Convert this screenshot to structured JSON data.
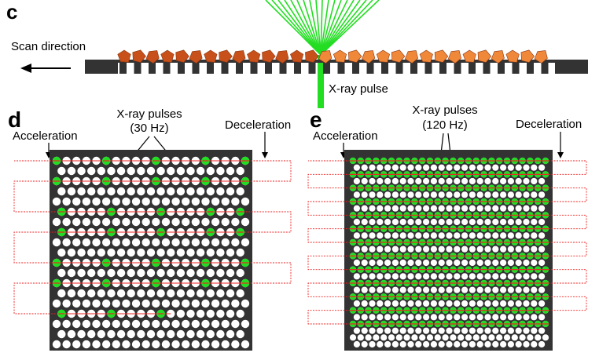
{
  "panel_c": {
    "letter": "c",
    "scan_direction_label": "Scan direction",
    "xray_pulse_label": "X-ray pulse"
  },
  "panel_d": {
    "letter": "d",
    "pulses_line1": "X-ray pulses",
    "pulses_line2": "(30 Hz)",
    "acceleration_label": "Acceleration",
    "deceleration_label": "Deceleration"
  },
  "panel_e": {
    "letter": "e",
    "pulses_line1": "X-ray pulses",
    "pulses_line2": "(120 Hz)",
    "acceleration_label": "Acceleration",
    "deceleration_label": "Deceleration"
  },
  "colors": {
    "chip": "#333333",
    "hole": "#ffffff",
    "beam_green": "#22dd22",
    "crystal_dark": "#c8501a",
    "crystal_light": "#f0883a",
    "scan_path_red": "#ee2222"
  }
}
